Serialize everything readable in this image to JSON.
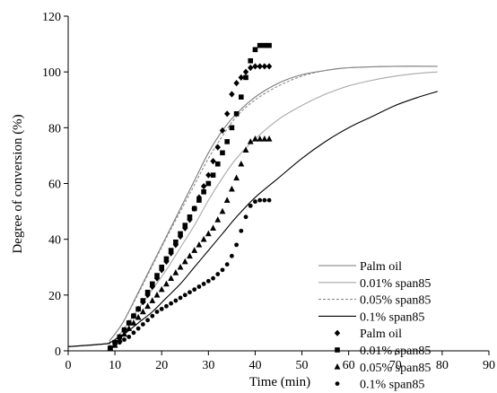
{
  "chart_data": {
    "type": "line",
    "title": "",
    "xlabel": "Time (min)",
    "ylabel": "Degree of conversion (%)",
    "xlim": [
      0,
      90
    ],
    "ylim": [
      0,
      120
    ],
    "xticks": [
      "0",
      "10",
      "20",
      "30",
      "40",
      "50",
      "60",
      "70",
      "80",
      "90"
    ],
    "yticks": [
      "0",
      "20",
      "40",
      "60",
      "80",
      "100",
      "120"
    ],
    "grid": false,
    "legend_position": "bottom-right",
    "series": [
      {
        "name": "Palm oil",
        "kind": "line",
        "style": "solid",
        "color": "#7a7a7a",
        "x": [
          0,
          8,
          9,
          10,
          12,
          15,
          18,
          21,
          24,
          27,
          30,
          33,
          36,
          40,
          45,
          50,
          55,
          60,
          70,
          79
        ],
        "y": [
          1.5,
          2.5,
          4,
          6,
          11,
          21,
          31,
          41,
          51,
          61,
          71,
          79,
          85,
          91,
          96,
          99,
          100.5,
          101.5,
          102,
          102
        ]
      },
      {
        "name": "0.01% span85",
        "kind": "line",
        "style": "solid",
        "color": "#a8a8a8",
        "x": [
          0,
          8,
          9,
          10,
          12,
          15,
          18,
          21,
          24,
          27,
          30,
          33,
          36,
          40,
          45,
          50,
          55,
          60,
          65,
          70,
          75,
          79
        ],
        "y": [
          1.5,
          2.5,
          3,
          4,
          8,
          15,
          22,
          29,
          37,
          45,
          54,
          62,
          69,
          76,
          83,
          88,
          92,
          95,
          97,
          98.5,
          99.5,
          100
        ]
      },
      {
        "name": "0.05% span85",
        "kind": "line",
        "style": "dashed",
        "color": "#8a8a8a",
        "x": [
          0,
          8,
          9,
          10,
          12,
          15,
          18,
          21,
          24,
          27,
          30,
          33,
          36,
          40,
          45,
          50,
          55,
          60,
          70,
          79
        ],
        "y": [
          1.5,
          2.5,
          4,
          6,
          11,
          20.5,
          30.5,
          40.5,
          50,
          59.5,
          69,
          77,
          84,
          90,
          95,
          98.5,
          100.5,
          101.5,
          102,
          102
        ]
      },
      {
        "name": "0.1% span85",
        "kind": "line",
        "style": "solid",
        "color": "#000000",
        "x": [
          0,
          8,
          9,
          10,
          12,
          15,
          18,
          21,
          24,
          27,
          30,
          33,
          36,
          40,
          45,
          50,
          55,
          60,
          65,
          70,
          75,
          79
        ],
        "y": [
          1.5,
          2.5,
          3,
          4,
          6,
          10,
          14,
          19,
          24,
          30,
          36,
          42,
          48,
          55,
          62,
          69,
          75,
          80,
          84,
          88,
          91,
          93
        ]
      },
      {
        "name": "Palm oil",
        "kind": "markers",
        "marker": "diamond",
        "color": "#000000",
        "x": [
          9,
          10,
          11,
          12,
          13,
          14,
          15,
          16,
          17,
          18,
          19,
          20,
          21,
          22,
          23,
          24,
          25,
          26,
          27,
          28,
          29,
          30,
          31,
          32,
          33,
          34,
          35,
          36,
          37,
          38,
          39,
          40,
          41,
          42,
          43
        ],
        "y": [
          1,
          3,
          5,
          7.5,
          10,
          12.5,
          15,
          17.5,
          20,
          23,
          26,
          29,
          32,
          35,
          38,
          41,
          44,
          47,
          51,
          55,
          59,
          63,
          68,
          73,
          79,
          85,
          92,
          96,
          98,
          100,
          101.5,
          102,
          102,
          102,
          102
        ]
      },
      {
        "name": "0.01% span85",
        "kind": "markers",
        "marker": "square",
        "color": "#000000",
        "x": [
          9,
          10,
          11,
          12,
          13,
          14,
          15,
          16,
          17,
          18,
          19,
          20,
          21,
          22,
          23,
          24,
          25,
          26,
          27,
          28,
          29,
          30,
          31,
          32,
          33,
          34,
          35,
          36,
          37,
          38,
          39,
          40,
          41,
          42,
          43
        ],
        "y": [
          1,
          3,
          5,
          7.5,
          10,
          12.5,
          15,
          18,
          21,
          24,
          27,
          30,
          33,
          36,
          39,
          42,
          45,
          48,
          51,
          54,
          57,
          60,
          63,
          67,
          71,
          75,
          80,
          85,
          91,
          98,
          104,
          108,
          109.5,
          109.5,
          109.5
        ]
      },
      {
        "name": "0.05% span85",
        "kind": "markers",
        "marker": "triangle",
        "color": "#000000",
        "x": [
          9,
          10,
          11,
          12,
          13,
          14,
          15,
          16,
          17,
          18,
          19,
          20,
          21,
          22,
          23,
          24,
          25,
          26,
          27,
          28,
          29,
          30,
          31,
          32,
          33,
          34,
          35,
          36,
          37,
          38,
          39,
          40,
          41,
          42,
          43
        ],
        "y": [
          1,
          2,
          4,
          6,
          8,
          10,
          12,
          14,
          16,
          18,
          20,
          22,
          24,
          26,
          28,
          30,
          32,
          34,
          36,
          38,
          40,
          42,
          44,
          47,
          50,
          54,
          58,
          62,
          67,
          72,
          75,
          76,
          76,
          76,
          76
        ]
      },
      {
        "name": "0.1% span85",
        "kind": "markers",
        "marker": "circle",
        "color": "#000000",
        "x": [
          9,
          10,
          11,
          12,
          13,
          14,
          15,
          16,
          17,
          18,
          19,
          20,
          21,
          22,
          23,
          24,
          25,
          26,
          27,
          28,
          29,
          30,
          31,
          32,
          33,
          34,
          35,
          36,
          37,
          38,
          39,
          40,
          41,
          42,
          43
        ],
        "y": [
          1,
          2,
          3,
          4,
          5,
          6.5,
          8,
          9.5,
          11,
          12.5,
          14,
          15,
          16,
          17,
          18,
          19,
          20,
          21,
          22,
          23,
          24,
          25,
          26,
          27.5,
          29,
          31,
          34,
          38,
          43,
          48,
          52,
          53.5,
          54,
          54,
          54
        ]
      }
    ]
  }
}
